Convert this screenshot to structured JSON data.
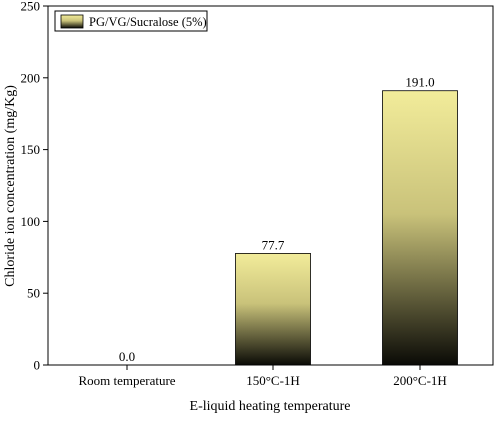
{
  "chart_data": {
    "type": "bar",
    "title": "",
    "xlabel": "E-liquid heating temperature",
    "ylabel": "Chloride ion concentration (mg/Kg)",
    "categories": [
      "Room temperature",
      "150°C-1H",
      "200°C-1H"
    ],
    "series": [
      {
        "name": "PG/VG/Sucralose (5%)",
        "values": [
          0.0,
          77.7,
          191.0
        ],
        "data_labels": [
          "0.0",
          "77.7",
          "191.0"
        ]
      }
    ],
    "ylim": [
      0,
      250
    ],
    "yticks": [
      0,
      50,
      100,
      150,
      200,
      250
    ],
    "ytick_labels": [
      "0",
      "50",
      "100",
      "150",
      "200",
      "250"
    ],
    "grid": false,
    "legend_position": "top-left",
    "bar_gradient": {
      "top": "#f2ec9a",
      "middle": "#c9c27a",
      "bottom": "#0a0a06"
    },
    "bar_stroke": "#000000"
  }
}
